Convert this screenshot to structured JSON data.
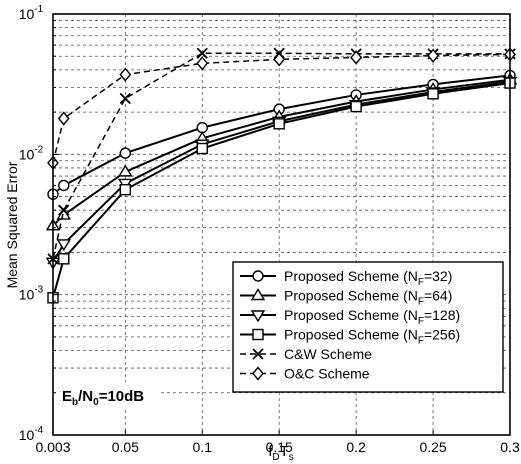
{
  "chart_data": {
    "type": "line",
    "ylabel": "Mean Squared Error",
    "xlabel_main": "f",
    "xlabel_sub1": "D",
    "xlabel_mid": "T",
    "xlabel_sub2": "s",
    "annotation": {
      "eb": "E",
      "eb_sub": "b",
      "slash": "/N",
      "n0_sub": "0",
      "value": "=10dB"
    },
    "xlim": [
      0.003,
      0.3
    ],
    "ylim_log10": [
      -4,
      -1
    ],
    "y_scale": "log",
    "grid": true,
    "legend_position": "bottom-right",
    "x_ticks": [
      {
        "v": 0.003,
        "label": "0.003"
      },
      {
        "v": 0.05,
        "label": "0.05"
      },
      {
        "v": 0.1,
        "label": "0.1"
      },
      {
        "v": 0.15,
        "label": "0.15"
      },
      {
        "v": 0.2,
        "label": "0.2"
      },
      {
        "v": 0.25,
        "label": "0.25"
      },
      {
        "v": 0.3,
        "label": "0.3"
      }
    ],
    "y_ticks": [
      {
        "exp": -4,
        "base": "10",
        "sup": "-4"
      },
      {
        "exp": -3,
        "base": "10",
        "sup": "-3"
      },
      {
        "exp": -2,
        "base": "10",
        "sup": "-2"
      },
      {
        "exp": -1,
        "base": "10",
        "sup": "-1"
      }
    ],
    "series": [
      {
        "name_main": "Proposed Scheme (N",
        "name_sub": "F",
        "name_tail": "=32)",
        "marker": "circle",
        "dash": false,
        "x": [
          0.003,
          0.01,
          0.05,
          0.1,
          0.15,
          0.2,
          0.25,
          0.3
        ],
        "y": [
          0.0052,
          0.006,
          0.0102,
          0.0155,
          0.021,
          0.0265,
          0.0315,
          0.0365
        ]
      },
      {
        "name_main": "Proposed Scheme (N",
        "name_sub": "F",
        "name_tail": "=64)",
        "marker": "triangle-up",
        "dash": false,
        "x": [
          0.003,
          0.01,
          0.05,
          0.1,
          0.15,
          0.2,
          0.25,
          0.3
        ],
        "y": [
          0.0031,
          0.0037,
          0.0075,
          0.013,
          0.0185,
          0.0238,
          0.029,
          0.034
        ]
      },
      {
        "name_main": "Proposed Scheme (N",
        "name_sub": "F",
        "name_tail": "=128)",
        "marker": "triangle-down",
        "dash": false,
        "x": [
          0.003,
          0.01,
          0.05,
          0.1,
          0.15,
          0.2,
          0.25,
          0.3
        ],
        "y": [
          0.0017,
          0.0023,
          0.0062,
          0.0118,
          0.0172,
          0.0226,
          0.0278,
          0.033
        ]
      },
      {
        "name_main": "Proposed Scheme (N",
        "name_sub": "F",
        "name_tail": "=256)",
        "marker": "square",
        "dash": false,
        "x": [
          0.003,
          0.01,
          0.05,
          0.1,
          0.15,
          0.2,
          0.25,
          0.3
        ],
        "y": [
          0.00095,
          0.0018,
          0.0056,
          0.011,
          0.0165,
          0.0219,
          0.027,
          0.0322
        ]
      },
      {
        "name_main": "C&W Scheme",
        "name_sub": "",
        "name_tail": "",
        "marker": "x",
        "dash": true,
        "x": [
          0.003,
          0.01,
          0.05,
          0.1,
          0.15,
          0.2,
          0.25,
          0.3
        ],
        "y": [
          0.0018,
          0.004,
          0.025,
          0.0525,
          0.0525,
          0.052,
          0.052,
          0.052
        ]
      },
      {
        "name_main": "O&C Scheme",
        "name_sub": "",
        "name_tail": "",
        "marker": "diamond",
        "dash": true,
        "x": [
          0.003,
          0.01,
          0.05,
          0.1,
          0.15,
          0.2,
          0.25,
          0.3
        ],
        "y": [
          0.0087,
          0.018,
          0.037,
          0.0445,
          0.0475,
          0.049,
          0.0505,
          0.0515
        ]
      }
    ]
  }
}
